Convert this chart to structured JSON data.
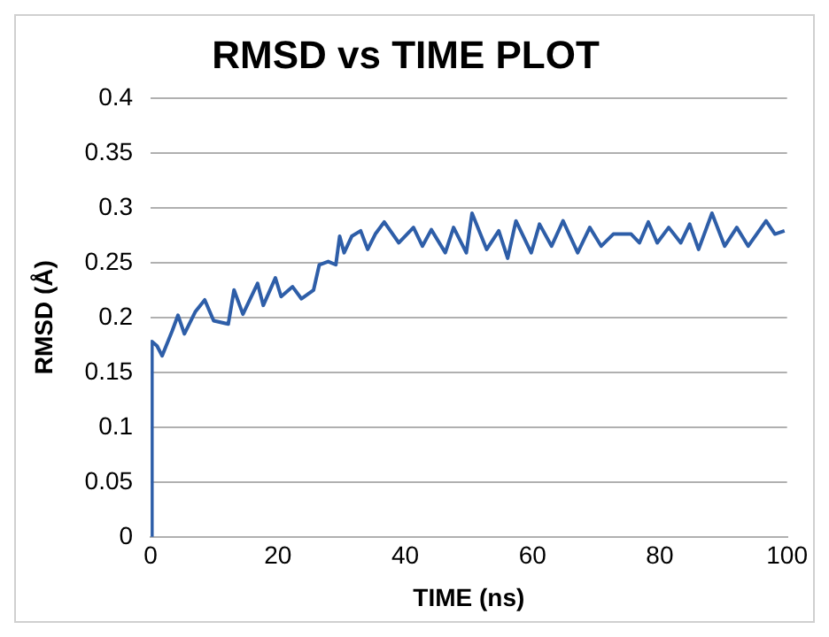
{
  "chart_data": {
    "type": "line",
    "title": "RMSD vs TIME PLOT",
    "xlabel": "TIME (ns)",
    "ylabel": "RMSD (Å)",
    "xlim": [
      0,
      100
    ],
    "xticks": [
      0,
      20,
      40,
      60,
      80,
      100
    ],
    "ylim": [
      0,
      0.4
    ],
    "yticks": [
      0,
      0.05,
      0.1,
      0.15,
      0.2,
      0.25,
      0.3,
      0.35,
      0.4
    ],
    "grid": "y",
    "legend": false,
    "marker": "none",
    "line_style": "solid",
    "series": [
      {
        "color": "#2e5ea8",
        "x": [
          0,
          0.2,
          1,
          1.8,
          3.4,
          4.3,
          5.3,
          7,
          8.5,
          9.9,
          12.2,
          13.1,
          14.5,
          16.8,
          17.7,
          19.6,
          20.5,
          22.3,
          23.7,
          25.6,
          26.5,
          27.9,
          29.1,
          29.7,
          30.4,
          31.6,
          33,
          34.1,
          35.3,
          36.7,
          39,
          41.3,
          42.7,
          44.1,
          46.3,
          47.6,
          49.6,
          50.5,
          52.8,
          54.7,
          56.1,
          57.4,
          59.8,
          61.1,
          63,
          64.8,
          67.1,
          69,
          70.8,
          72.7,
          75.5,
          76.8,
          78.2,
          79.6,
          81.4,
          83.3,
          84.7,
          86.1,
          88.2,
          90.2,
          92.1,
          93.9,
          96.7,
          98.1,
          99.6
        ],
        "values": [
          0,
          0.178,
          0.174,
          0.165,
          0.188,
          0.202,
          0.185,
          0.205,
          0.216,
          0.197,
          0.194,
          0.225,
          0.203,
          0.231,
          0.211,
          0.236,
          0.219,
          0.228,
          0.217,
          0.225,
          0.248,
          0.251,
          0.248,
          0.274,
          0.259,
          0.274,
          0.279,
          0.262,
          0.276,
          0.287,
          0.268,
          0.282,
          0.265,
          0.28,
          0.259,
          0.282,
          0.259,
          0.295,
          0.262,
          0.279,
          0.254,
          0.288,
          0.259,
          0.285,
          0.265,
          0.288,
          0.259,
          0.282,
          0.265,
          0.276,
          0.276,
          0.268,
          0.287,
          0.268,
          0.282,
          0.268,
          0.285,
          0.262,
          0.295,
          0.265,
          0.282,
          0.265,
          0.288,
          0.276,
          0.279
        ]
      }
    ]
  }
}
